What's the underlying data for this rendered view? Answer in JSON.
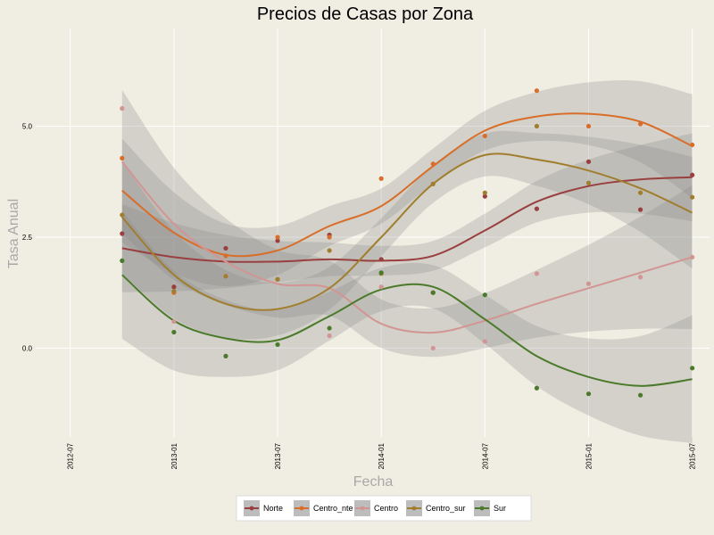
{
  "chart_data": {
    "type": "scatter",
    "title": "Precios de Casas por Zona",
    "xlabel": "Fecha",
    "ylabel": "Tasa Anual",
    "x": [
      "2012-10",
      "2013-01",
      "2013-04",
      "2013-07",
      "2013-10",
      "2014-01",
      "2014-04",
      "2014-07",
      "2014-10",
      "2015-01",
      "2015-04",
      "2015-07"
    ],
    "xlim": [
      "2012-05",
      "2015-08"
    ],
    "ylim": [
      -2.0,
      7.2
    ],
    "x_ticks": [
      "2012-07",
      "2013-01",
      "2013-07",
      "2014-01",
      "2014-07",
      "2015-01",
      "2015-07"
    ],
    "y_ticks": [
      "0.0",
      "2.5",
      "5.0"
    ],
    "y_tick_values": [
      0.0,
      2.5,
      5.0
    ],
    "grid": true,
    "legend_position": "bottom",
    "smoothing": "loess with confidence band",
    "series": [
      {
        "name": "Norte",
        "color": "#9a3f3f",
        "values": [
          2.58,
          1.38,
          2.25,
          2.42,
          2.55,
          2.0,
          1.25,
          3.42,
          3.14,
          4.2,
          3.12,
          3.9
        ],
        "smooth": [
          2.25,
          2.05,
          1.95,
          1.95,
          2.0,
          1.97,
          2.08,
          2.65,
          3.3,
          3.65,
          3.8,
          3.85
        ],
        "se": 0.55
      },
      {
        "name": "Centro_nte",
        "color": "#d86e2a",
        "values": [
          4.28,
          1.25,
          2.08,
          2.5,
          2.5,
          3.82,
          4.15,
          4.78,
          5.8,
          5.0,
          5.05,
          4.58
        ],
        "smooth": [
          3.55,
          2.6,
          2.1,
          2.2,
          2.75,
          3.2,
          4.1,
          4.9,
          5.22,
          5.28,
          5.1,
          4.55
        ],
        "se": 0.65
      },
      {
        "name": "Centro",
        "color": "#d29594",
        "values": [
          5.4,
          0.6,
          1.63,
          1.55,
          0.28,
          1.38,
          0.0,
          0.15,
          1.68,
          1.45,
          1.6,
          2.05
        ],
        "smooth": [
          4.2,
          2.8,
          1.95,
          1.45,
          1.35,
          0.55,
          0.35,
          0.62,
          1.0,
          1.35,
          1.7,
          2.05
        ],
        "se": 0.9
      },
      {
        "name": "Centro_sur",
        "color": "#a07e2e",
        "values": [
          3.0,
          1.28,
          1.62,
          1.55,
          2.2,
          1.68,
          3.7,
          3.5,
          5.0,
          3.72,
          3.5,
          3.4
        ],
        "smooth": [
          2.95,
          1.65,
          1.0,
          0.88,
          1.35,
          2.5,
          3.7,
          4.35,
          4.25,
          4.0,
          3.6,
          3.05
        ],
        "se": 0.7
      },
      {
        "name": "Sur",
        "color": "#4a7a2a",
        "values": [
          1.97,
          0.36,
          -0.18,
          0.08,
          0.45,
          1.7,
          1.25,
          1.2,
          -0.9,
          -1.03,
          -1.06,
          -0.45
        ],
        "smooth": [
          1.65,
          0.62,
          0.22,
          0.18,
          0.72,
          1.32,
          1.38,
          0.65,
          -0.18,
          -0.65,
          -0.85,
          -0.7
        ],
        "se": 0.8
      }
    ]
  }
}
